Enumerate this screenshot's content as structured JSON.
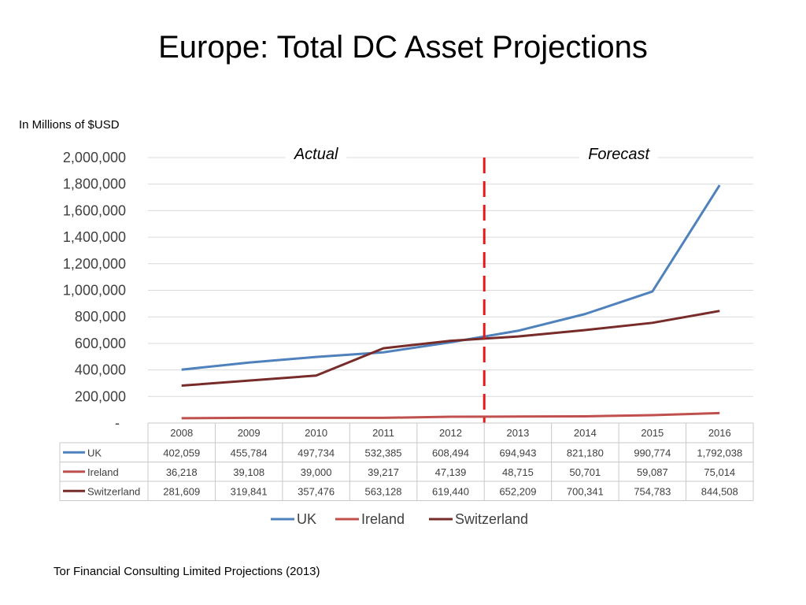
{
  "slide": {
    "title": "Europe: Total DC Asset Projections",
    "units_label": "In Millions of $USD",
    "footer": "Tor Financial Consulting Limited Projections (2013)"
  },
  "chart_data": {
    "type": "line",
    "title": "",
    "xlabel": "",
    "ylabel": "",
    "ylim": [
      0,
      2000000
    ],
    "y_ticks": [
      0,
      200000,
      400000,
      600000,
      800000,
      1000000,
      1200000,
      1400000,
      1600000,
      1800000,
      2000000
    ],
    "y_tick_labels": [
      "-",
      "200,000",
      "400,000",
      "600,000",
      "800,000",
      "1,000,000",
      "1,200,000",
      "1,400,000",
      "1,600,000",
      "1,800,000",
      "2,000,000"
    ],
    "grid": true,
    "legend_position": "bottom",
    "categories": [
      "2008",
      "2009",
      "2010",
      "2011",
      "2012",
      "2013",
      "2014",
      "2015",
      "2016"
    ],
    "series": [
      {
        "name": "UK",
        "color": "#4f81bd",
        "values": [
          402059,
          455784,
          497734,
          532385,
          608494,
          694943,
          821180,
          990774,
          1792038
        ],
        "labels": [
          "402,059",
          "455,784",
          "497,734",
          "532,385",
          "608,494",
          "694,943",
          "821,180",
          "990,774",
          "1,792,038"
        ]
      },
      {
        "name": "Ireland",
        "color": "#c0504d",
        "values": [
          36218,
          39108,
          39000,
          39217,
          47139,
          48715,
          50701,
          59087,
          75014
        ],
        "labels": [
          "36,218",
          "39,108",
          "39,000",
          "39,217",
          "47,139",
          "48,715",
          "50,701",
          "59,087",
          "75,014"
        ]
      },
      {
        "name": "Switzerland",
        "color": "#772c2a",
        "values": [
          281609,
          319841,
          357476,
          563128,
          619440,
          652209,
          700341,
          754783,
          844508
        ],
        "labels": [
          "281,609",
          "319,841",
          "357,476",
          "563,128",
          "619,440",
          "652,209",
          "700,341",
          "754,783",
          "844,508"
        ]
      }
    ],
    "annotations": [
      {
        "text": "Actual",
        "category_span": [
          "2008",
          "2012"
        ]
      },
      {
        "text": "Forecast",
        "category_span": [
          "2013",
          "2016"
        ]
      }
    ],
    "divider": {
      "between": [
        "2012",
        "2013"
      ],
      "style": "dashed",
      "color": "#e31a1c"
    },
    "data_table": true
  }
}
